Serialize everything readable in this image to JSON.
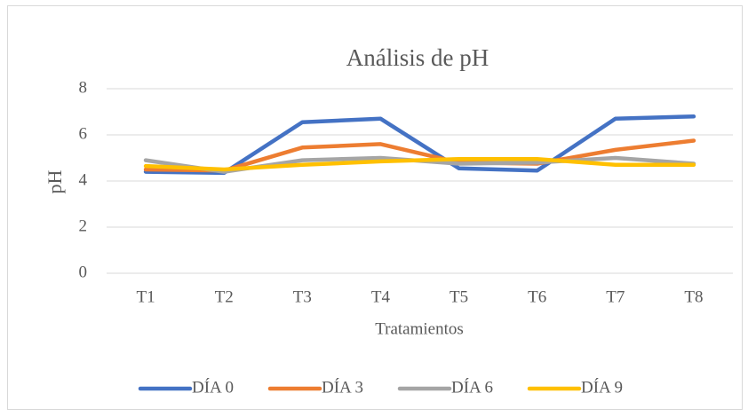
{
  "chart_data": {
    "type": "line",
    "title": "Análisis  de pH",
    "x_label": "Tratamientos",
    "y_label": "pH",
    "categories": [
      "T1",
      "T2",
      "T3",
      "T4",
      "T5",
      "T6",
      "T7",
      "T8"
    ],
    "series": [
      {
        "name": "DÍA 0",
        "color": "#4472c4",
        "values": [
          4.4,
          4.35,
          6.55,
          6.7,
          4.55,
          4.45,
          6.7,
          6.8
        ]
      },
      {
        "name": "DÍA 3",
        "color": "#ed7d31",
        "values": [
          4.5,
          4.45,
          5.45,
          5.6,
          4.8,
          4.75,
          5.35,
          5.75
        ]
      },
      {
        "name": "DÍA 6",
        "color": "#a5a5a5",
        "values": [
          4.9,
          4.4,
          4.9,
          5.0,
          4.75,
          4.8,
          5.0,
          4.75
        ]
      },
      {
        "name": "DÍA 9",
        "color": "#ffc000",
        "values": [
          4.65,
          4.5,
          4.7,
          4.85,
          4.95,
          4.95,
          4.7,
          4.7
        ]
      }
    ],
    "ylim": [
      0,
      8
    ],
    "yticks": [
      0,
      2,
      4,
      6,
      8
    ],
    "grid": true,
    "legend": "bottom"
  }
}
